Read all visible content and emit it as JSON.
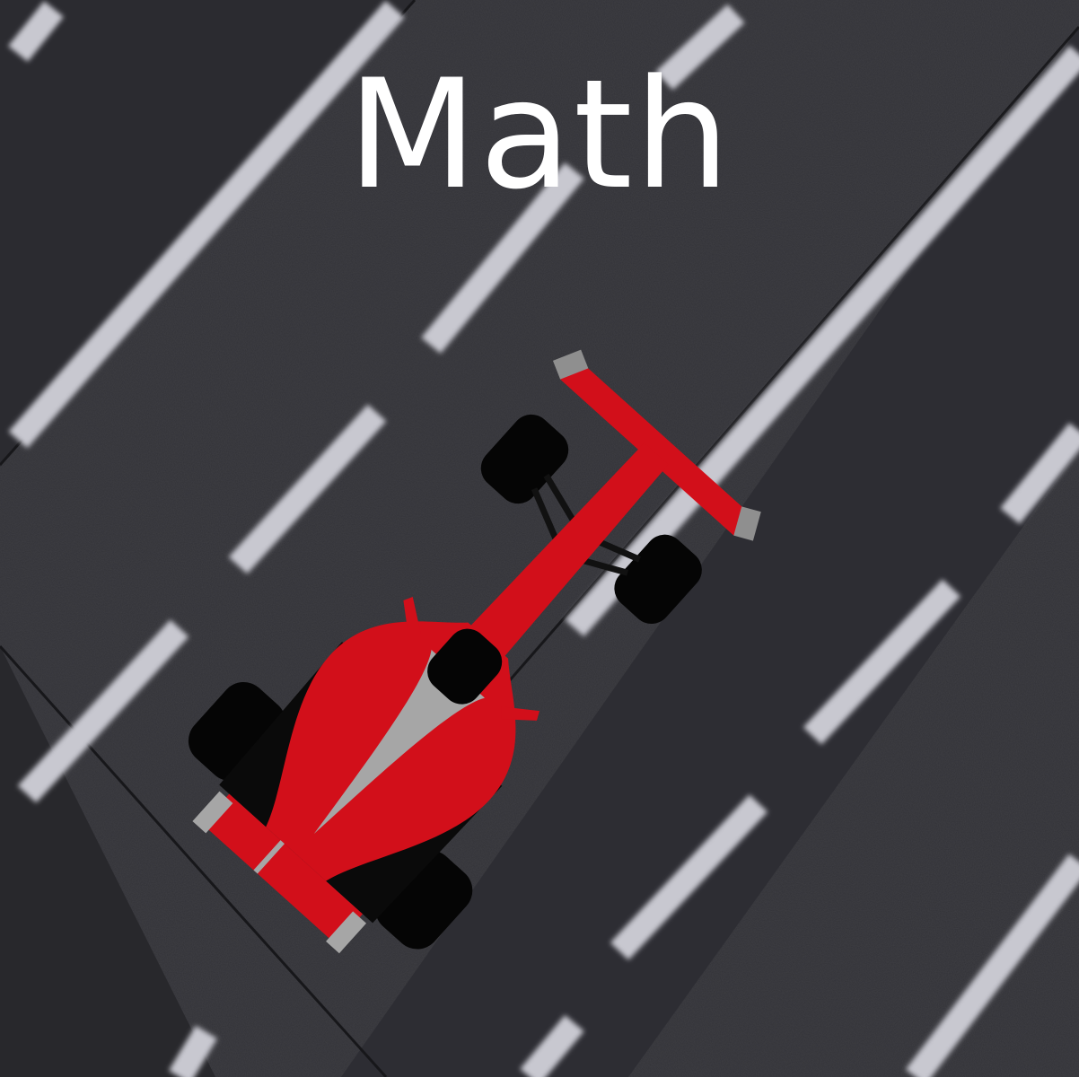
{
  "title": "Math",
  "colors": {
    "asphalt": "#323237",
    "asphalt_dark": "#2a2a2e",
    "lane_marking": "#cfcfd6",
    "car_body": "#d20f1a",
    "car_trim": "#a6a6a6",
    "tire": "#050505",
    "title_text": "#ffffff"
  }
}
